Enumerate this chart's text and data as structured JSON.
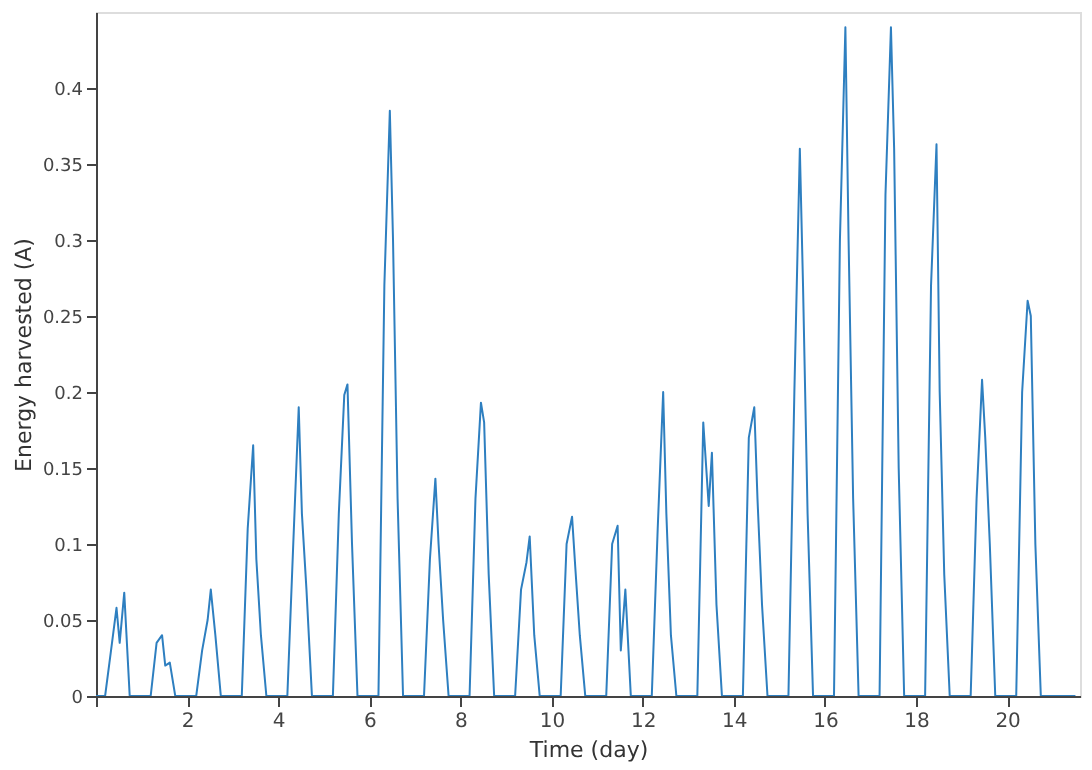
{
  "chart_data": {
    "type": "line",
    "xlabel": "Time (day)",
    "ylabel": "Energy harvested (A)",
    "xlim": [
      0,
      21.6
    ],
    "ylim": [
      0,
      0.45
    ],
    "xticks": [
      {
        "value": 0,
        "label": null
      },
      2,
      4,
      6,
      8,
      10,
      12,
      14,
      16,
      18,
      20
    ],
    "yticks": [
      0,
      0.05,
      0.1,
      0.15,
      0.2,
      0.25,
      0.3,
      0.35,
      0.4
    ],
    "grid": false,
    "marker": "none",
    "line_style": "solid",
    "series": [
      {
        "color": "#2e7fc0",
        "x": [
          0,
          0.2,
          0.33,
          0.45,
          0.52,
          0.62,
          0.74,
          1.2,
          1.33,
          1.45,
          1.52,
          1.62,
          1.74,
          2.2,
          2.33,
          2.45,
          2.52,
          2.62,
          2.74,
          3.2,
          3.33,
          3.45,
          3.52,
          3.62,
          3.74,
          4.2,
          4.33,
          4.45,
          4.52,
          4.62,
          4.74,
          5.2,
          5.33,
          5.45,
          5.52,
          5.62,
          5.74,
          6.2,
          6.33,
          6.45,
          6.52,
          6.62,
          6.74,
          7.2,
          7.33,
          7.45,
          7.52,
          7.62,
          7.74,
          8.2,
          8.33,
          8.45,
          8.52,
          8.62,
          8.74,
          9.2,
          9.33,
          9.45,
          9.52,
          9.62,
          9.74,
          10.2,
          10.33,
          10.45,
          10.52,
          10.62,
          10.74,
          11.2,
          11.33,
          11.45,
          11.52,
          11.62,
          11.74,
          12.2,
          12.33,
          12.45,
          12.52,
          12.62,
          12.74,
          13.2,
          13.33,
          13.45,
          13.52,
          13.62,
          13.74,
          14.2,
          14.33,
          14.45,
          14.52,
          14.62,
          14.74,
          15.2,
          15.33,
          15.45,
          15.52,
          15.62,
          15.74,
          16.2,
          16.33,
          16.45,
          16.52,
          16.62,
          16.74,
          17.2,
          17.33,
          17.45,
          17.52,
          17.62,
          17.74,
          18.2,
          18.33,
          18.45,
          18.52,
          18.62,
          18.74,
          19.2,
          19.33,
          19.45,
          19.52,
          19.62,
          19.74,
          20.2,
          20.33,
          20.45,
          20.52,
          20.62,
          20.74,
          21.5
        ],
        "values": [
          0,
          0,
          0.03,
          0.058,
          0.035,
          0.068,
          0,
          0,
          0.035,
          0.04,
          0.02,
          0.022,
          0,
          0,
          0.03,
          0.05,
          0.07,
          0.04,
          0,
          0,
          0.11,
          0.165,
          0.09,
          0.04,
          0,
          0,
          0.1,
          0.19,
          0.12,
          0.07,
          0,
          0,
          0.12,
          0.198,
          0.205,
          0.1,
          0,
          0,
          0.27,
          0.385,
          0.3,
          0.13,
          0,
          0,
          0.09,
          0.143,
          0.1,
          0.05,
          0,
          0,
          0.13,
          0.193,
          0.18,
          0.08,
          0,
          0,
          0.07,
          0.088,
          0.105,
          0.04,
          0,
          0,
          0.1,
          0.118,
          0.085,
          0.04,
          0,
          0,
          0.1,
          0.112,
          0.03,
          0.07,
          0,
          0,
          0.11,
          0.2,
          0.12,
          0.04,
          0,
          0,
          0.18,
          0.125,
          0.16,
          0.06,
          0,
          0,
          0.17,
          0.19,
          0.13,
          0.06,
          0,
          0,
          0.2,
          0.36,
          0.27,
          0.12,
          0,
          0,
          0.3,
          0.44,
          0.3,
          0.13,
          0,
          0,
          0.33,
          0.44,
          0.36,
          0.15,
          0,
          0,
          0.27,
          0.363,
          0.2,
          0.08,
          0,
          0,
          0.13,
          0.208,
          0.17,
          0.1,
          0,
          0,
          0.2,
          0.26,
          0.25,
          0.1,
          0,
          0
        ]
      }
    ]
  }
}
